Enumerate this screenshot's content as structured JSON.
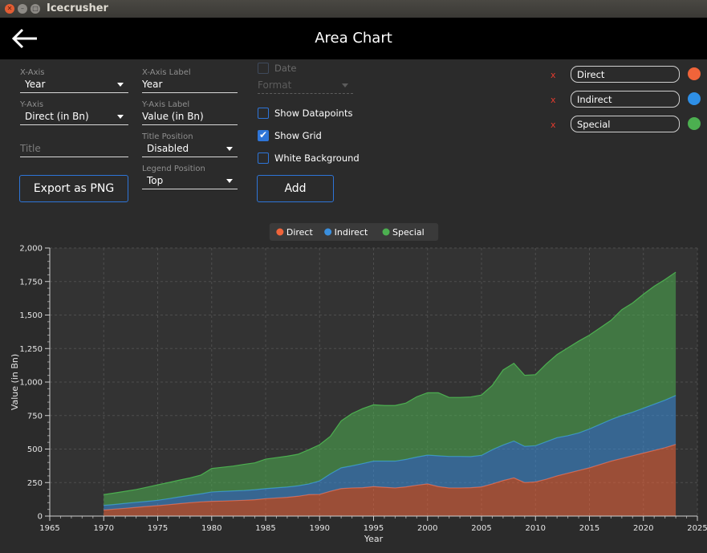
{
  "window": {
    "title": "Icecrusher"
  },
  "header": {
    "title": "Area Chart"
  },
  "controls": {
    "x_axis": {
      "label": "X-Axis",
      "value": "Year"
    },
    "y_axis": {
      "label": "Y-Axis",
      "value": "Direct (in Bn)"
    },
    "title_field": {
      "placeholder": "Title"
    },
    "x_axis_label": {
      "label": "X-Axis Label",
      "value": "Year"
    },
    "y_axis_label": {
      "label": "Y-Axis Label",
      "value": "Value (in Bn)"
    },
    "title_position": {
      "label": "Title Position",
      "value": "Disabled"
    },
    "legend_position": {
      "label": "Legend Position",
      "value": "Top"
    },
    "date": {
      "label": "Date",
      "checked": false,
      "disabled": true
    },
    "format": {
      "placeholder": "Format"
    },
    "show_datapoints": {
      "label": "Show Datapoints",
      "checked": false
    },
    "show_grid": {
      "label": "Show Grid",
      "checked": true
    },
    "white_background": {
      "label": "White Background",
      "checked": false
    },
    "export_button": "Export as PNG",
    "add_button": "Add",
    "remove_symbol": "x"
  },
  "series_list": [
    {
      "name": "Direct",
      "color": "#f0643a"
    },
    {
      "name": "Indirect",
      "color": "#2e8fe6"
    },
    {
      "name": "Special",
      "color": "#4caf50"
    }
  ],
  "chart_data": {
    "type": "area",
    "stacked": true,
    "xlabel": "Year",
    "ylabel": "Value (in Bn)",
    "xlim": [
      1965,
      2025
    ],
    "ylim": [
      0,
      2000
    ],
    "x_ticks": [
      "1965",
      "1970",
      "1975",
      "1980",
      "1985",
      "1990",
      "1995",
      "2000",
      "2005",
      "2010",
      "2015",
      "2020",
      "2025"
    ],
    "y_ticks": [
      "0",
      "250",
      "500",
      "750",
      "1,000",
      "1,250",
      "1,500",
      "1,750",
      "2,000"
    ],
    "grid": true,
    "legend_position": "top",
    "x": [
      1970,
      1971,
      1972,
      1973,
      1974,
      1975,
      1976,
      1977,
      1978,
      1979,
      1980,
      1981,
      1982,
      1983,
      1984,
      1985,
      1986,
      1987,
      1988,
      1989,
      1990,
      1991,
      1992,
      1993,
      1994,
      1995,
      1996,
      1997,
      1998,
      1999,
      2000,
      2001,
      2002,
      2003,
      2004,
      2005,
      2006,
      2007,
      2008,
      2009,
      2010,
      2011,
      2012,
      2013,
      2014,
      2015,
      2016,
      2017,
      2018,
      2019,
      2020,
      2021,
      2022,
      2023
    ],
    "series": [
      {
        "name": "Direct",
        "color": "#f0643a",
        "values": [
          45,
          52,
          58,
          65,
          72,
          78,
          85,
          93,
          100,
          106,
          110,
          112,
          115,
          118,
          122,
          130,
          135,
          140,
          148,
          160,
          162,
          185,
          205,
          210,
          212,
          220,
          215,
          210,
          218,
          230,
          240,
          220,
          210,
          210,
          212,
          218,
          240,
          265,
          285,
          250,
          255,
          275,
          300,
          320,
          340,
          360,
          385,
          410,
          430,
          450,
          470,
          490,
          510,
          535
        ]
      },
      {
        "name": "Indirect",
        "color": "#3a8fde",
        "values": [
          35,
          35,
          37,
          38,
          38,
          40,
          45,
          50,
          55,
          60,
          70,
          72,
          73,
          73,
          75,
          75,
          76,
          77,
          78,
          80,
          100,
          130,
          155,
          165,
          180,
          190,
          195,
          200,
          205,
          210,
          215,
          230,
          235,
          235,
          232,
          235,
          255,
          265,
          275,
          270,
          270,
          280,
          285,
          280,
          280,
          290,
          300,
          310,
          320,
          325,
          335,
          345,
          355,
          365
        ]
      },
      {
        "name": "Special",
        "color": "#4caf50",
        "values": [
          80,
          85,
          90,
          95,
          105,
          115,
          120,
          125,
          130,
          140,
          175,
          180,
          185,
          195,
          200,
          220,
          225,
          230,
          235,
          255,
          270,
          280,
          350,
          390,
          410,
          420,
          415,
          415,
          420,
          450,
          465,
          470,
          440,
          440,
          445,
          450,
          480,
          560,
          580,
          530,
          530,
          580,
          620,
          655,
          685,
          700,
          720,
          740,
          790,
          815,
          850,
          880,
          900,
          920
        ]
      }
    ]
  }
}
